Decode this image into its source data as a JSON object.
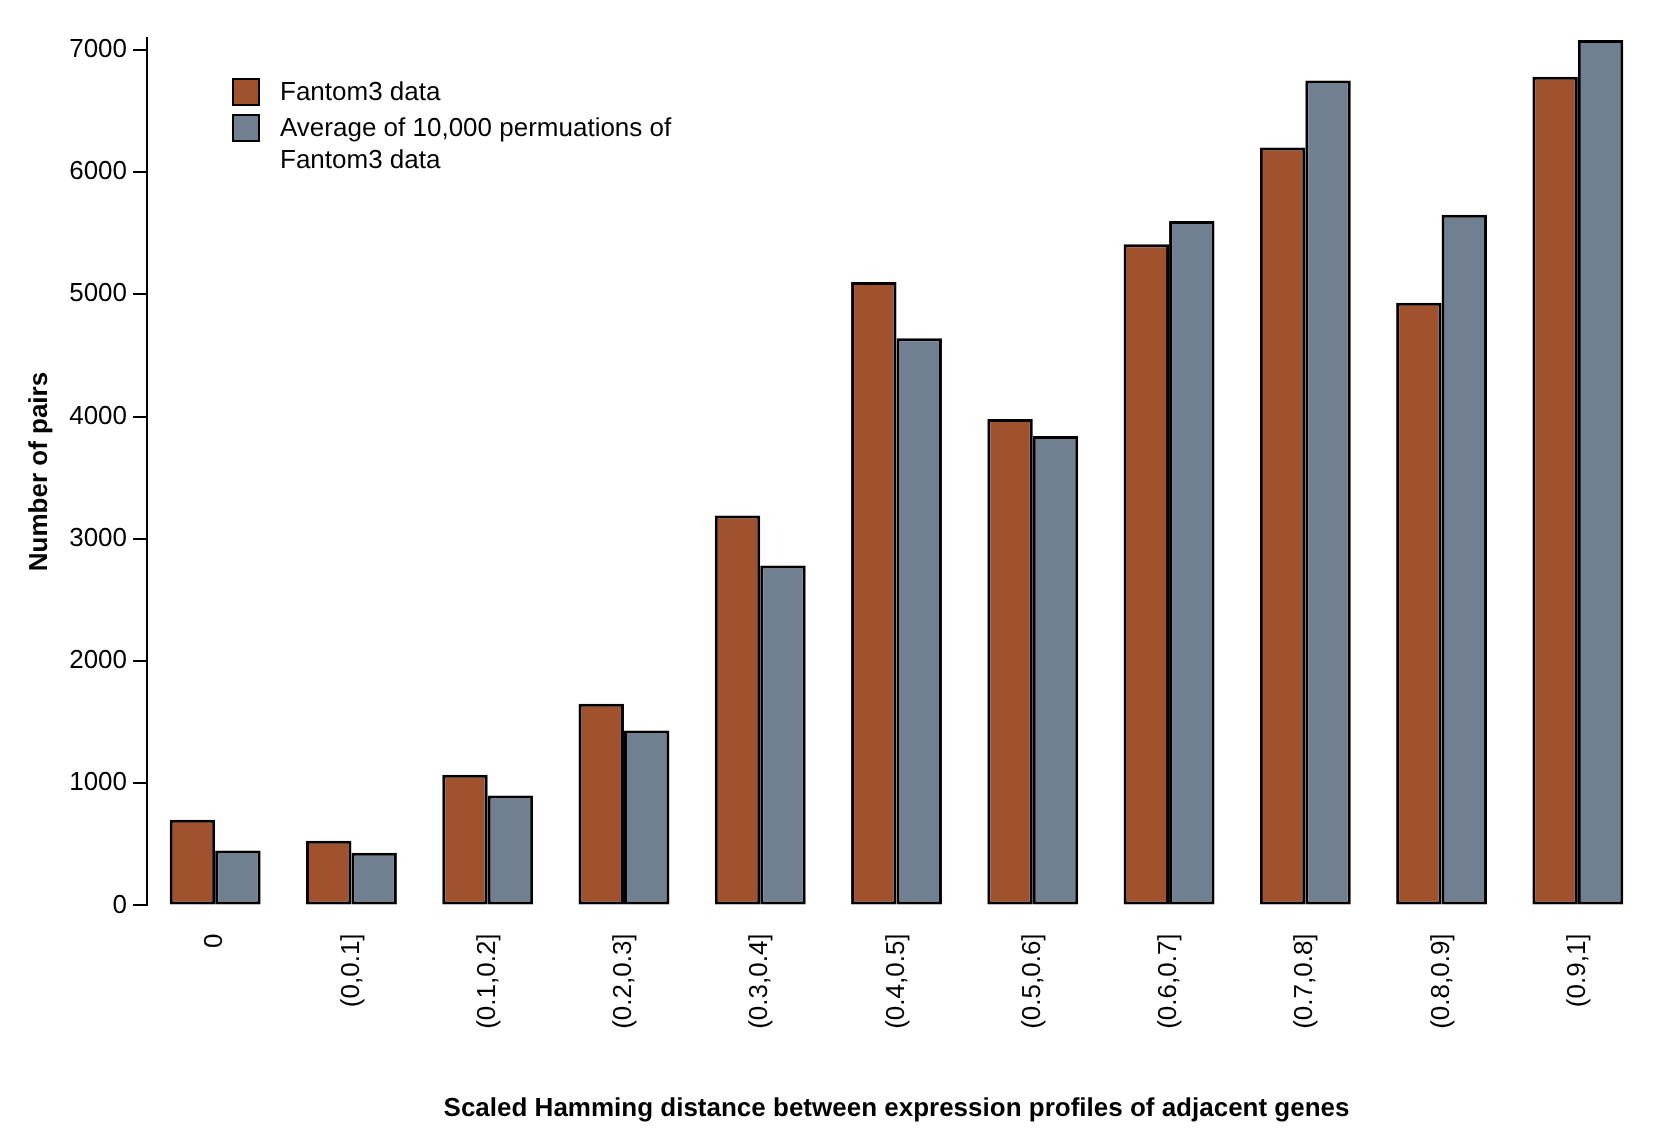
{
  "chart_data": {
    "type": "bar",
    "xlabel": "Scaled Hamming distance between expression profiles of adjacent genes",
    "ylabel": "Number of pairs",
    "categories": [
      "0",
      "(0,0.1]",
      "(0.1,0.2]",
      "(0.2,0.3]",
      "(0.3,0.4]",
      "(0.4,0.5]",
      "(0.5,0.6]",
      "(0.6,0.7]",
      "(0.7,0.8]",
      "(0.8,0.9]",
      "(0.9,1]"
    ],
    "series": [
      {
        "name": "Fantom3 data",
        "color": "#a0522d",
        "values": [
          700,
          530,
          1070,
          1650,
          3190,
          5100,
          3980,
          5410,
          6200,
          4930,
          6780
        ]
      },
      {
        "name": "Average of 10,000 permuations of Fantom3 data",
        "color": "#708090",
        "values": [
          450,
          430,
          900,
          1430,
          2780,
          4640,
          3840,
          5600,
          6750,
          5650,
          7080
        ]
      }
    ],
    "ylim": [
      0,
      7100
    ],
    "yticks": [
      0,
      1000,
      2000,
      3000,
      4000,
      5000,
      6000,
      7000
    ],
    "grid": false,
    "legend": "top left"
  }
}
